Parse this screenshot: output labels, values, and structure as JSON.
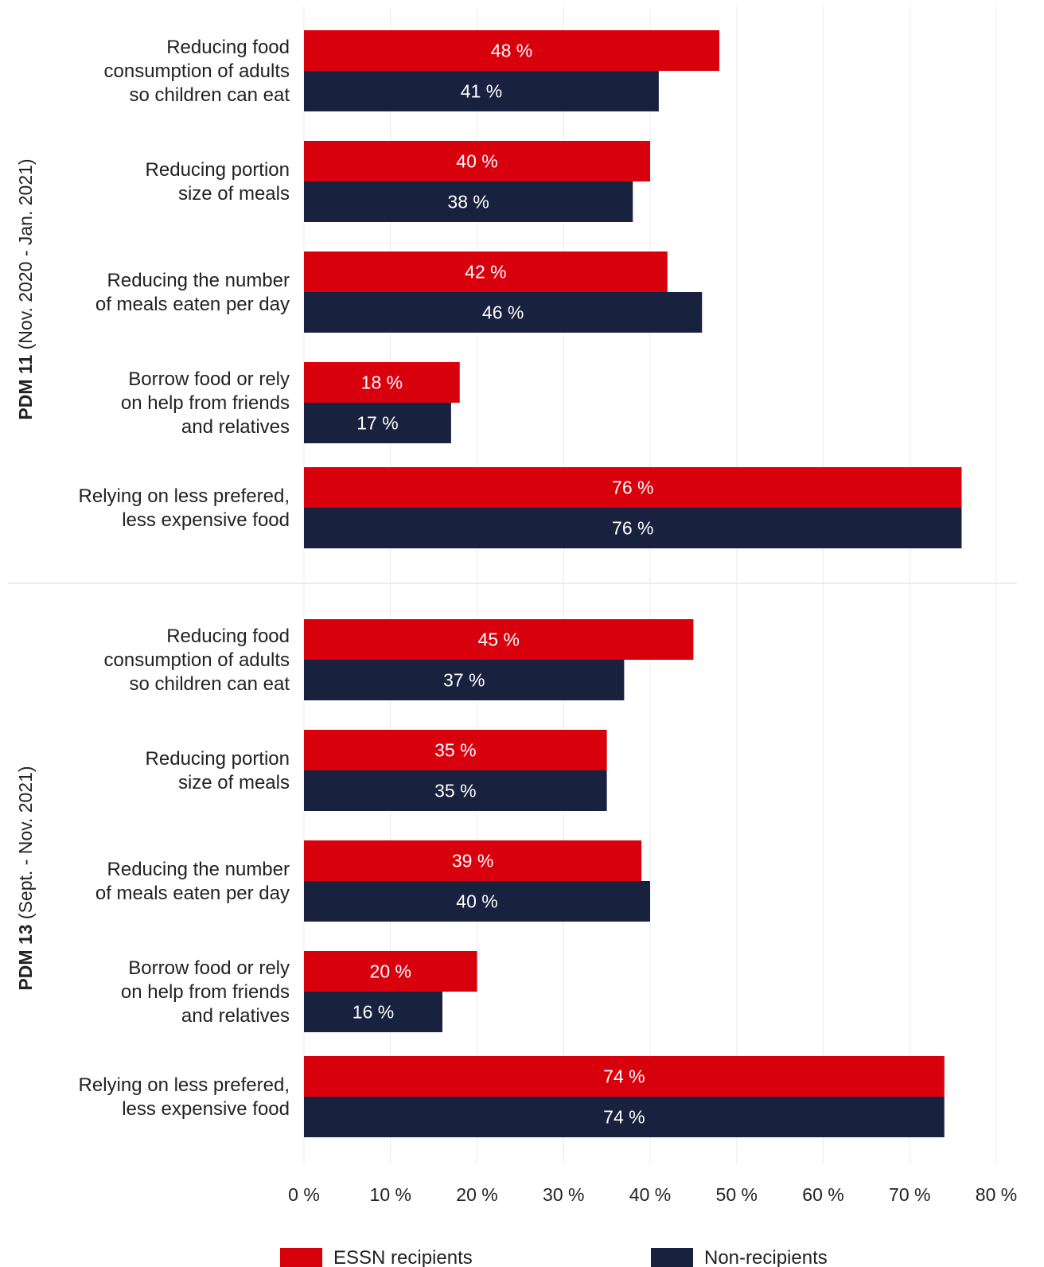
{
  "chart_data": {
    "type": "bar",
    "orientation": "horizontal",
    "xlim": [
      0,
      80
    ],
    "x_ticks": [
      0,
      10,
      20,
      30,
      40,
      50,
      60,
      70,
      80
    ],
    "tick_suffix": " %",
    "value_suffix": " %",
    "grid": true,
    "legend": {
      "placement": "bottom"
    },
    "series": [
      {
        "name": "ESSN recipients",
        "color": "#d9000d"
      },
      {
        "name": "Non-recipients",
        "color": "#18223f"
      }
    ],
    "panels": [
      {
        "label_bold": "PDM 11",
        "label_rest": " (Nov. 2020 - Jan. 2021)",
        "categories": [
          [
            "Reducing food",
            "consumption of adults",
            "so children can eat"
          ],
          [
            "Reducing portion",
            "size of meals"
          ],
          [
            "Reducing the number",
            "of meals eaten per day"
          ],
          [
            "Borrow food or rely",
            "on help from friends",
            "and relatives"
          ],
          [
            "Relying on less prefered,",
            "less expensive food"
          ]
        ],
        "values": [
          [
            48,
            41
          ],
          [
            40,
            38
          ],
          [
            42,
            46
          ],
          [
            18,
            17
          ],
          [
            76,
            76
          ]
        ]
      },
      {
        "label_bold": "PDM 13",
        "label_rest": " (Sept. - Nov. 2021)",
        "categories": [
          [
            "Reducing food",
            "consumption of adults",
            "so children can eat"
          ],
          [
            "Reducing portion",
            "size of meals"
          ],
          [
            "Reducing the number",
            "of meals eaten per day"
          ],
          [
            "Borrow food or rely",
            "on help from friends",
            "and relatives"
          ],
          [
            "Relying on less prefered,",
            "less expensive food"
          ]
        ],
        "values": [
          [
            45,
            37
          ],
          [
            35,
            35
          ],
          [
            39,
            40
          ],
          [
            20,
            16
          ],
          [
            74,
            74
          ]
        ]
      }
    ]
  }
}
